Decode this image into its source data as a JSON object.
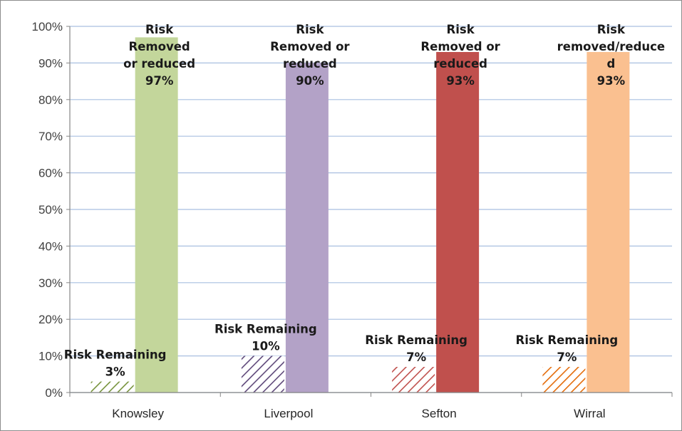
{
  "chart_data": {
    "type": "bar",
    "categories": [
      "Knowsley",
      "Liverpool",
      "Sefton",
      "Wirral"
    ],
    "ylim": [
      0,
      100
    ],
    "yticks": [
      "0%",
      "10%",
      "20%",
      "30%",
      "40%",
      "50%",
      "60%",
      "70%",
      "80%",
      "90%",
      "100%"
    ],
    "grid": true,
    "title": "",
    "xlabel": "",
    "ylabel": "",
    "colors": {
      "Knowsley": "#c3d69b",
      "Liverpool": "#b3a2c7",
      "Sefton": "#c0504d",
      "Wirral": "#fac090",
      "Knowsley_hatch": "#77933c",
      "Liverpool_hatch": "#5f497a",
      "Sefton_hatch": "#c0504d",
      "Wirral_hatch": "#e46c0a"
    },
    "series": [
      {
        "values": [
          3,
          10,
          7,
          7
        ],
        "pattern": "hatched",
        "labels": [
          [
            "Risk Remaining",
            "3%"
          ],
          [
            "Risk Remaining",
            "10%"
          ],
          [
            "Risk Remaining",
            "7%"
          ],
          [
            "Risk Remaining",
            "7%"
          ]
        ]
      },
      {
        "values": [
          97,
          90,
          93,
          93
        ],
        "pattern": "solid",
        "labels": [
          [
            "Risk",
            "Removed",
            "or reduced",
            "97%"
          ],
          [
            "Risk",
            "Removed or",
            "reduced",
            "90%"
          ],
          [
            "Risk",
            "Removed or",
            "reduced",
            "93%"
          ],
          [
            "Risk",
            "removed/reduce",
            "d",
            "93%"
          ]
        ]
      }
    ]
  }
}
